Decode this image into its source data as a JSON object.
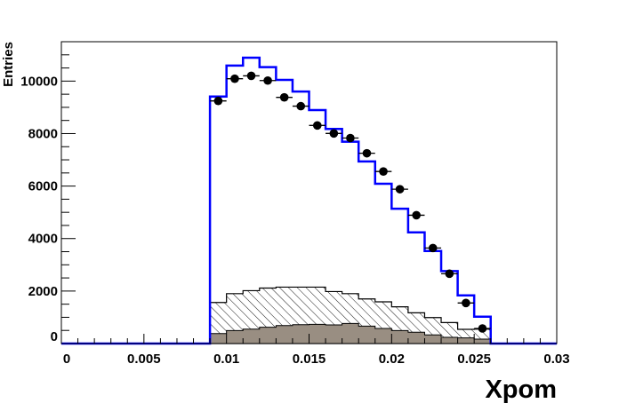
{
  "chart_data": {
    "type": "bar",
    "title": "",
    "xlabel": "Xpom",
    "ylabel": "Entries",
    "xlim": [
      0,
      0.03
    ],
    "ylim": [
      0,
      11500
    ],
    "grid": false,
    "x_tick_labels": [
      "0",
      "0.005",
      "0.01",
      "0.015",
      "0.02",
      "0.025",
      "0.03"
    ],
    "y_tick_labels": [
      "0",
      "2000",
      "4000",
      "6000",
      "8000",
      "10000"
    ],
    "bin_edges": [
      0.009,
      0.01,
      0.011,
      0.012,
      0.013,
      0.014,
      0.015,
      0.016,
      0.017,
      0.018,
      0.019,
      0.02,
      0.021,
      0.022,
      0.023,
      0.024,
      0.025,
      0.026
    ],
    "series": [
      {
        "style": "step-line",
        "color": "#0000ff",
        "values": [
          9410,
          10590,
          10890,
          10530,
          10045,
          9600,
          8895,
          8175,
          7690,
          6940,
          6090,
          5135,
          4235,
          3525,
          2760,
          1835,
          1025
        ]
      },
      {
        "style": "points-with-x-errors",
        "color": "#000000",
        "values": [
          9245,
          10090,
          10200,
          10020,
          9380,
          9045,
          8310,
          8005,
          7830,
          7250,
          6555,
          5880,
          4890,
          3640,
          2660,
          1545,
          575
        ]
      },
      {
        "style": "hatched-fill",
        "color": "#000000",
        "values": [
          1565,
          1900,
          2015,
          2115,
          2150,
          2150,
          2150,
          1980,
          1900,
          1700,
          1590,
          1400,
          1170,
          990,
          800,
          540,
          550
        ]
      },
      {
        "style": "solid-fill",
        "color": "#998e82",
        "values": [
          380,
          495,
          550,
          620,
          685,
          720,
          730,
          710,
          765,
          665,
          575,
          495,
          430,
          330,
          235,
          215,
          170
        ]
      }
    ]
  }
}
